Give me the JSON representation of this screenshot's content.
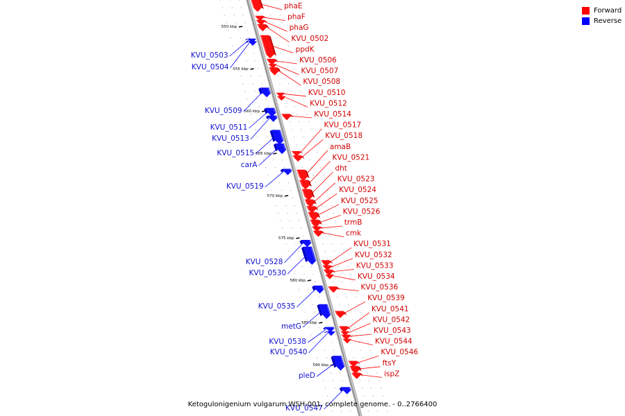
{
  "legend": {
    "forward_label": "Forward",
    "reverse_label": "Reverse",
    "forward_color": "#ff0000",
    "reverse_color": "#0000ff"
  },
  "caption": "Ketogulonigenium vulgarum WSH-001, complete genome. - 0..2766400",
  "scale_ticks": [
    {
      "kbp": 550,
      "label": "550 kbp"
    },
    {
      "kbp": 555,
      "label": "555 kbp"
    },
    {
      "kbp": 560,
      "label": "560 kbp"
    },
    {
      "kbp": 565,
      "label": "565 kbp"
    },
    {
      "kbp": 570,
      "label": "570 kbp"
    },
    {
      "kbp": 575,
      "label": "575 kbp"
    },
    {
      "kbp": 580,
      "label": "580 kbp"
    },
    {
      "kbp": 585,
      "label": "585 kbp"
    },
    {
      "kbp": 590,
      "label": "590 kbp"
    }
  ],
  "forward_genes": [
    {
      "name": "phaE",
      "start": 546.4,
      "end": 547.8
    },
    {
      "name": "phaF",
      "start": 548.5,
      "end": 548.9
    },
    {
      "name": "phaG",
      "start": 549.0,
      "end": 549.4
    },
    {
      "name": "KVU_0502",
      "start": 549.5,
      "end": 550.1
    },
    {
      "name": "ppdK",
      "start": 550.8,
      "end": 553.3
    },
    {
      "name": "KVU_0506",
      "start": 553.6,
      "end": 554.1
    },
    {
      "name": "KVU_0507",
      "start": 554.2,
      "end": 554.5
    },
    {
      "name": "KVU_0508",
      "start": 554.6,
      "end": 555.3
    },
    {
      "name": "KVU_0510",
      "start": 557.6,
      "end": 557.9
    },
    {
      "name": "KVU_0512",
      "start": 558.0,
      "end": 558.3
    },
    {
      "name": "KVU_0514",
      "start": 560.1,
      "end": 560.6
    },
    {
      "name": "KVU_0517",
      "start": 564.5,
      "end": 564.9
    },
    {
      "name": "KVU_0518",
      "start": 565.0,
      "end": 565.5
    },
    {
      "name": "amaB",
      "start": 566.7,
      "end": 567.8
    },
    {
      "name": "KVU_0521",
      "start": 567.9,
      "end": 568.8
    },
    {
      "name": "dht",
      "start": 569.0,
      "end": 570.1
    },
    {
      "name": "KVU_0523",
      "start": 570.2,
      "end": 570.9
    },
    {
      "name": "KVU_0524",
      "start": 571.0,
      "end": 571.6
    },
    {
      "name": "KVU_0525",
      "start": 571.7,
      "end": 572.5
    },
    {
      "name": "KVU_0526",
      "start": 572.6,
      "end": 573.3
    },
    {
      "name": "trmB",
      "start": 573.4,
      "end": 573.8
    },
    {
      "name": "cmk",
      "start": 573.9,
      "end": 574.4
    },
    {
      "name": "KVU_0531",
      "start": 577.4,
      "end": 577.9
    },
    {
      "name": "KVU_0532",
      "start": 578.0,
      "end": 578.4
    },
    {
      "name": "KVU_0533",
      "start": 578.5,
      "end": 579.0
    },
    {
      "name": "KVU_0534",
      "start": 579.1,
      "end": 579.4
    },
    {
      "name": "KVU_0536",
      "start": 580.5,
      "end": 581.0
    },
    {
      "name": "KVU_0539",
      "start": 583.4,
      "end": 584.0
    },
    {
      "name": "KVU_0541",
      "start": 585.2,
      "end": 585.7
    },
    {
      "name": "KVU_0542",
      "start": 585.8,
      "end": 586.1
    },
    {
      "name": "KVU_0543",
      "start": 586.2,
      "end": 586.6
    },
    {
      "name": "KVU_0544",
      "start": 586.7,
      "end": 587.0
    },
    {
      "name": "KVU_0546",
      "start": 589.3,
      "end": 589.8
    },
    {
      "name": "ftsY",
      "start": 589.9,
      "end": 590.6
    },
    {
      "name": "ispZ",
      "start": 590.7,
      "end": 591.2
    }
  ],
  "reverse_genes": [
    {
      "name": "KVU_0503",
      "start": 551.2,
      "end": 551.5
    },
    {
      "name": "KVU_0504",
      "start": 551.5,
      "end": 551.8
    },
    {
      "name": "KVU_0509",
      "start": 557.0,
      "end": 557.9
    },
    {
      "name": "KVU_0511",
      "start": 559.4,
      "end": 560.2
    },
    {
      "name": "KVU_0513",
      "start": 560.3,
      "end": 560.8
    },
    {
      "name": "KVU_0515",
      "start": 562.0,
      "end": 563.5
    },
    {
      "name": "carA",
      "start": 563.6,
      "end": 564.6
    },
    {
      "name": "KVU_0519",
      "start": 566.6,
      "end": 567.1
    },
    {
      "name": "KVU_0528",
      "start": 575.0,
      "end": 575.6
    },
    {
      "name": "KVU_0530",
      "start": 575.8,
      "end": 577.7
    },
    {
      "name": "KVU_0535",
      "start": 580.4,
      "end": 581.1
    },
    {
      "name": "metG",
      "start": 582.6,
      "end": 584.1
    },
    {
      "name": "KVU_0538",
      "start": 585.3,
      "end": 585.7
    },
    {
      "name": "KVU_0540",
      "start": 585.8,
      "end": 586.1
    },
    {
      "name": "pleD",
      "start": 588.7,
      "end": 590.2
    },
    {
      "name": "KVU_0547",
      "start": 592.4,
      "end": 593.0
    }
  ]
}
